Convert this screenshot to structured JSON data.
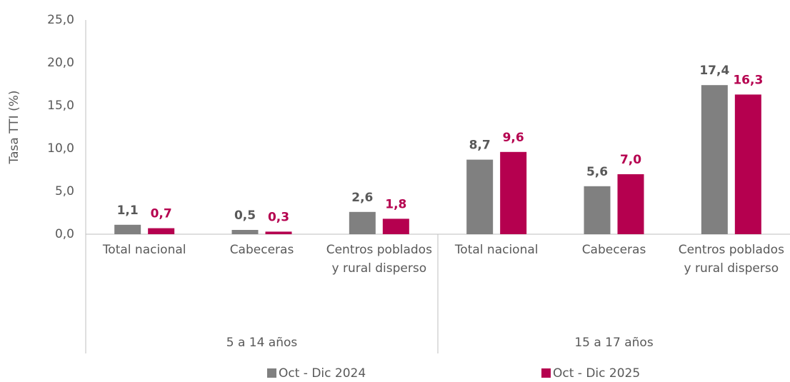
{
  "chart_data": {
    "type": "bar",
    "y_label": "Tasa TTI (%)",
    "categories": [
      "Total nacional",
      "Cabeceras",
      "Centros poblados y rural disperso",
      "Total nacional",
      "Cabeceras",
      "Centros poblados y rural disperso"
    ],
    "groups": [
      {
        "name": "5 a 14 años",
        "size": 3
      },
      {
        "name": "15 a 17 años",
        "size": 3
      }
    ],
    "series": [
      {
        "name": "Oct - Dic 2024",
        "color": "#808080",
        "values": [
          1.1,
          0.5,
          2.6,
          8.7,
          5.6,
          17.4
        ],
        "value_labels": [
          "1,1",
          "0,5",
          "2,6",
          "8,7",
          "5,6",
          "17,4"
        ]
      },
      {
        "name": "Oct - Dic 2025",
        "color": "#b5004f",
        "values": [
          0.7,
          0.3,
          1.8,
          9.6,
          7.0,
          16.3
        ],
        "value_labels": [
          "0,7",
          "0,3",
          "1,8",
          "9,6",
          "7,0",
          "16,3"
        ]
      }
    ],
    "ylim": [
      0,
      25
    ],
    "yticks": [
      {
        "value": 0,
        "label": "0,0"
      },
      {
        "value": 5,
        "label": "5,0"
      },
      {
        "value": 10,
        "label": "10,0"
      },
      {
        "value": 15,
        "label": "15,0"
      },
      {
        "value": 20,
        "label": "20,0"
      },
      {
        "value": 25,
        "label": "25,0"
      }
    ],
    "grid": false
  }
}
